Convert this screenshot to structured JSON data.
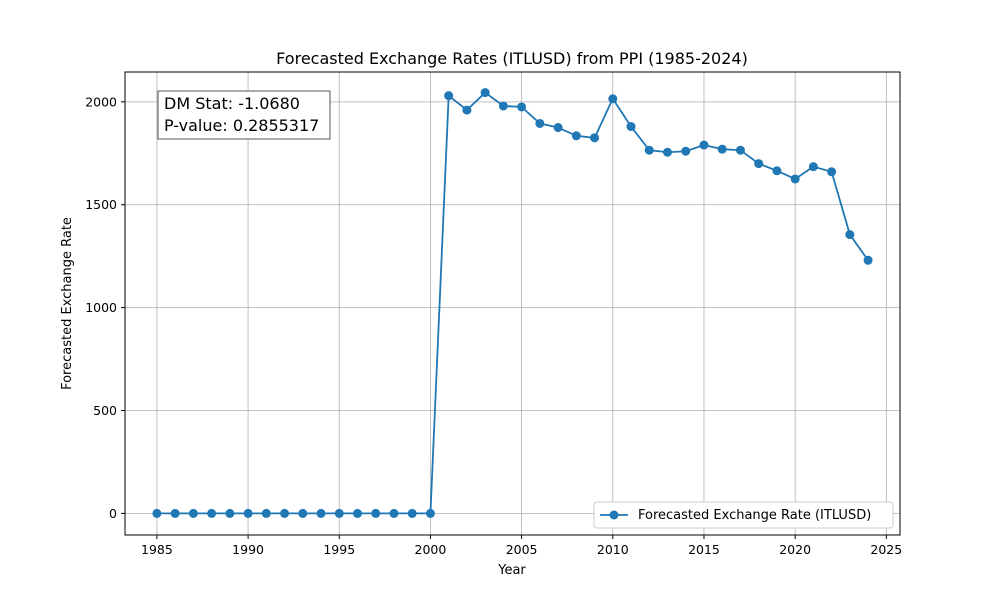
{
  "chart_data": {
    "type": "line",
    "title": "Forecasted Exchange Rates (ITLUSD) from PPI (1985-2024)",
    "xlabel": "Year",
    "ylabel": "Forecasted Exchange Rate",
    "xlim": [
      1983.25,
      2025.75
    ],
    "ylim": [
      -105,
      2145
    ],
    "xticks": [
      1985,
      1990,
      1995,
      2000,
      2005,
      2010,
      2015,
      2020,
      2025
    ],
    "yticks": [
      0,
      500,
      1000,
      1500,
      2000
    ],
    "grid": true,
    "legend_position": "lower-right",
    "color": "#1f77b4",
    "series": [
      {
        "name": "Forecasted Exchange Rate (ITLUSD)",
        "x": [
          1985,
          1986,
          1987,
          1988,
          1989,
          1990,
          1991,
          1992,
          1993,
          1994,
          1995,
          1996,
          1997,
          1998,
          1999,
          2000,
          2001,
          2002,
          2003,
          2004,
          2005,
          2006,
          2007,
          2008,
          2009,
          2010,
          2011,
          2012,
          2013,
          2014,
          2015,
          2016,
          2017,
          2018,
          2019,
          2020,
          2021,
          2022,
          2023,
          2024
        ],
        "values": [
          0,
          0,
          0,
          0,
          0,
          0,
          0,
          0,
          0,
          0,
          0,
          0,
          0,
          0,
          0,
          0,
          2030,
          1960,
          2045,
          1980,
          1975,
          1895,
          1875,
          1835,
          1825,
          2015,
          1880,
          1765,
          1755,
          1760,
          1790,
          1770,
          1765,
          1700,
          1665,
          1625,
          1685,
          1660,
          1355,
          1230
        ]
      }
    ],
    "annotation": {
      "line1": "DM Stat: -1.0680",
      "line2": "P-value: 0.2855317"
    }
  }
}
